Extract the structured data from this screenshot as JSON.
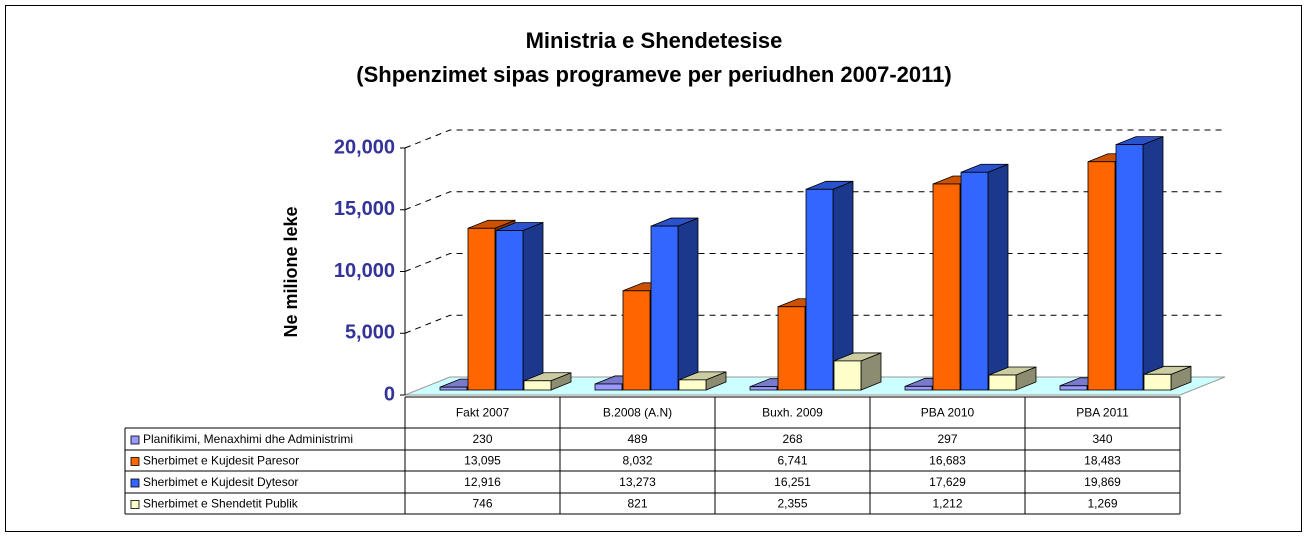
{
  "chart_data": {
    "type": "bar3d",
    "title": "Ministria e Shendetesise",
    "subtitle": "(Shpenzimet sipas programeve per periudhen 2007-2011)",
    "y_label": "Ne milione leke",
    "categories": [
      "Fakt 2007",
      "B.2008 (A.N)",
      "Buxh. 2009",
      "PBA 2010",
      "PBA 2011"
    ],
    "series": [
      {
        "name": "Planifikimi, Menaxhimi dhe Administrimi",
        "color": "#9999ff",
        "values": [
          230,
          489,
          268,
          297,
          340
        ],
        "value_labels": [
          "230",
          "489",
          "268",
          "297",
          "340"
        ]
      },
      {
        "name": "Sherbimet e Kujdesit Paresor",
        "color": "#ff6600",
        "values": [
          13095,
          8032,
          6741,
          16683,
          18483
        ],
        "value_labels": [
          "13,095",
          "8,032",
          "6,741",
          "16,683",
          "18,483"
        ]
      },
      {
        "name": "Sherbimet e Kujdesit Dytesor",
        "color": "#3366ff",
        "values": [
          12916,
          13273,
          16251,
          17629,
          19869
        ],
        "value_labels": [
          "12,916",
          "13,273",
          "16,251",
          "17,629",
          "19,869"
        ]
      },
      {
        "name": "Sherbimet e Shendetit Publik",
        "color": "#ffffcc",
        "values": [
          746,
          821,
          2355,
          1212,
          1269
        ],
        "value_labels": [
          "746",
          "821",
          "2,355",
          "1,212",
          "1,269"
        ]
      }
    ],
    "ylim": [
      0,
      20000
    ],
    "yticks": [
      0,
      {
        "value": 5000,
        "label": "5,000"
      },
      {
        "value": 10000,
        "label": "10,000"
      },
      {
        "value": 15000,
        "label": "15,000"
      },
      {
        "value": 20000,
        "label": "20,000"
      }
    ],
    "grid": true
  }
}
